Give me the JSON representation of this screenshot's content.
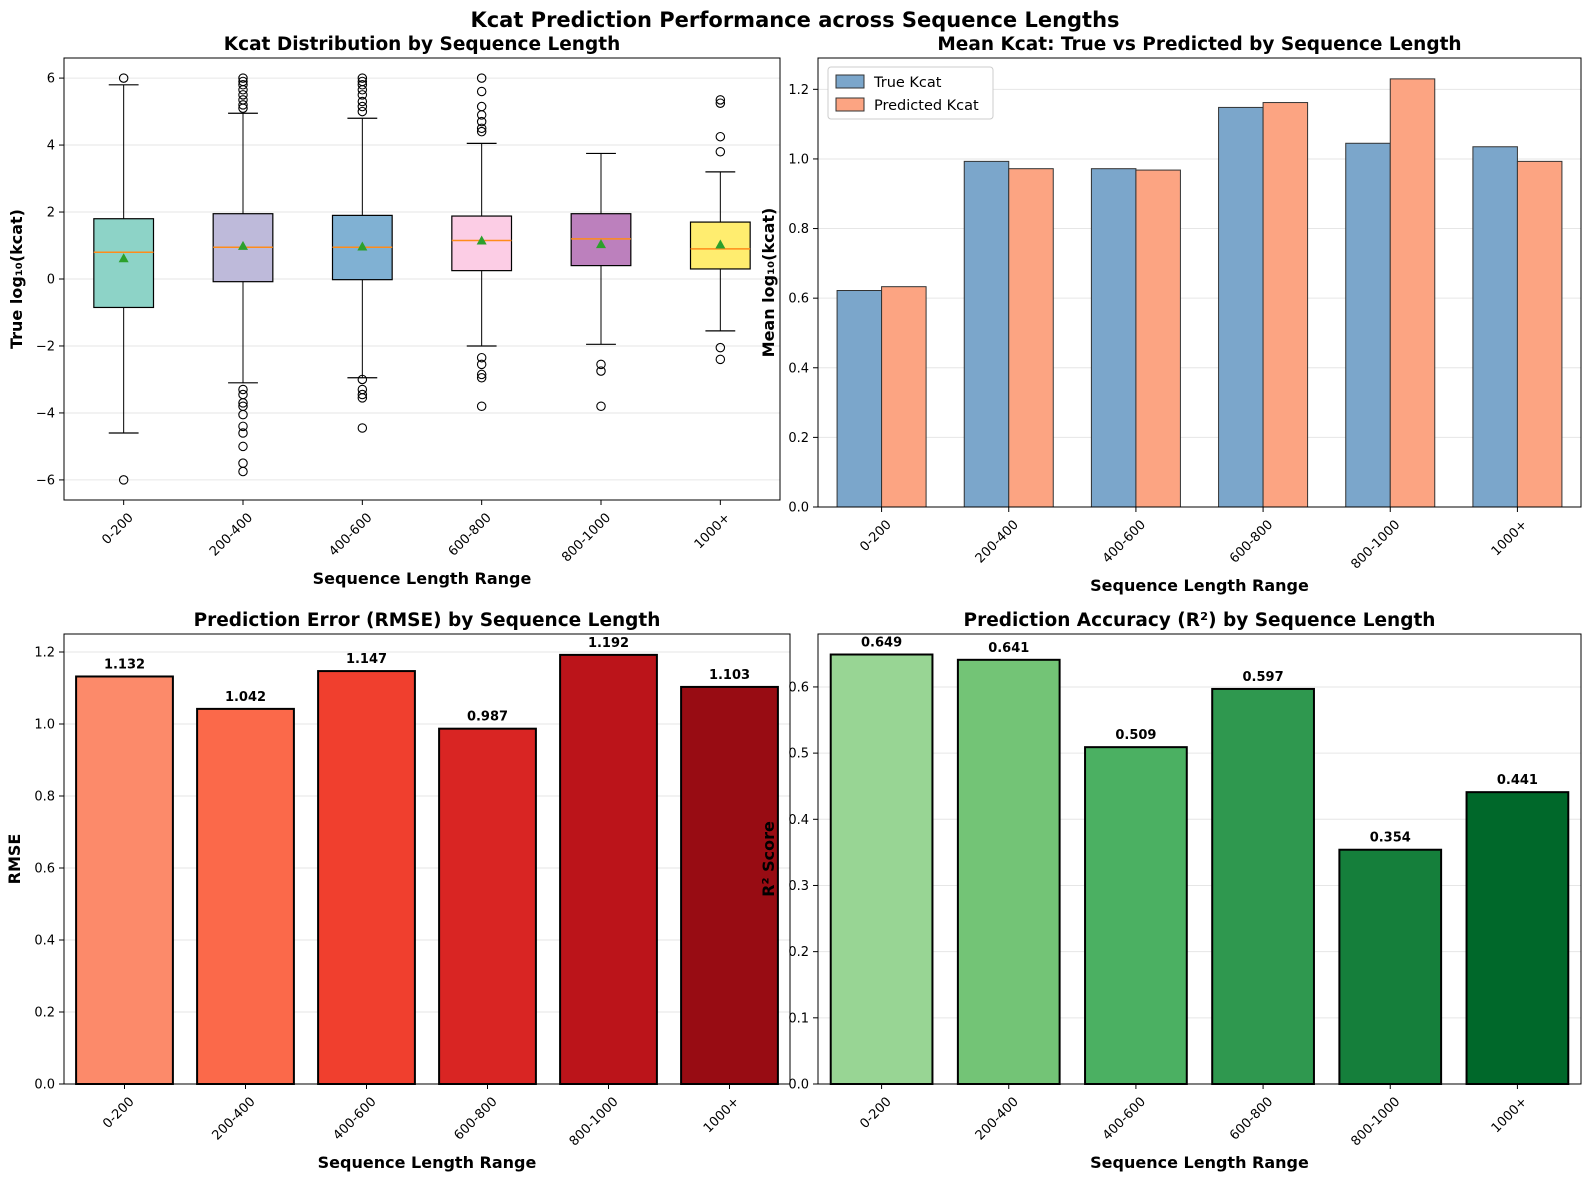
{
  "suptitle": "Kcat Prediction Performance across Sequence Lengths",
  "chart_data": [
    {
      "type": "box",
      "title": "Kcat Distribution by Sequence Length",
      "xlabel": "Sequence Length Range",
      "ylabel": "True log₁₀(kcat)",
      "ylim": [
        -6.6,
        6.6
      ],
      "yticks": [
        -6,
        -4,
        -2,
        0,
        2,
        4,
        6
      ],
      "categories": [
        "0-200",
        "200-400",
        "400-600",
        "600-800",
        "800-1000",
        "1000+"
      ],
      "colors": [
        "#8dd3c7",
        "#bebada",
        "#80b1d3",
        "#fccde5",
        "#bc80bd",
        "#ffed6f"
      ],
      "boxes": [
        {
          "whislo": -4.6,
          "q1": -0.85,
          "med": 0.8,
          "q3": 1.8,
          "whishi": 5.8,
          "mean": 0.62,
          "fliers": [
            6.0,
            -6.0
          ]
        },
        {
          "whislo": -3.1,
          "q1": -0.08,
          "med": 0.95,
          "q3": 1.95,
          "whishi": 4.95,
          "mean": 0.99,
          "fliers": [
            6.0,
            5.9,
            5.8,
            5.65,
            5.5,
            5.35,
            5.2,
            5.1,
            -3.3,
            -3.45,
            -3.7,
            -3.8,
            -4.05,
            -4.4,
            -4.6,
            -5.0,
            -5.5,
            -5.75
          ]
        },
        {
          "whislo": -2.95,
          "q1": -0.02,
          "med": 0.95,
          "q3": 1.9,
          "whishi": 4.8,
          "mean": 0.97,
          "fliers": [
            6.0,
            5.9,
            5.8,
            5.65,
            5.5,
            5.3,
            5.15,
            5.0,
            -3.0,
            -3.3,
            -3.45,
            -3.55,
            -4.45
          ]
        },
        {
          "whislo": -2.0,
          "q1": 0.25,
          "med": 1.15,
          "q3": 1.88,
          "whishi": 4.05,
          "mean": 1.15,
          "fliers": [
            6.0,
            5.6,
            5.15,
            4.9,
            4.7,
            4.5,
            4.4,
            -2.35,
            -2.55,
            -2.85,
            -2.95,
            -3.8
          ]
        },
        {
          "whislo": -1.95,
          "q1": 0.4,
          "med": 1.2,
          "q3": 1.95,
          "whishi": 3.75,
          "mean": 1.04,
          "fliers": [
            -2.55,
            -2.75,
            -3.8
          ]
        },
        {
          "whislo": -1.55,
          "q1": 0.3,
          "med": 0.9,
          "q3": 1.7,
          "whishi": 3.2,
          "mean": 1.03,
          "fliers": [
            5.35,
            5.25,
            4.25,
            3.8,
            -2.05,
            -2.4
          ]
        }
      ]
    },
    {
      "type": "bar",
      "title": "Mean Kcat: True vs Predicted by Sequence Length",
      "xlabel": "Sequence Length Range",
      "ylabel": "Mean log₁₀(kcat)",
      "ylim": [
        0,
        1.29
      ],
      "yticks": [
        0.0,
        0.2,
        0.4,
        0.6,
        0.8,
        1.0,
        1.2
      ],
      "categories": [
        "0-200",
        "200-400",
        "400-600",
        "600-800",
        "800-1000",
        "1000+"
      ],
      "legend_position": "upper-left",
      "series": [
        {
          "name": "True Kcat",
          "color": "#7ba6cb",
          "values": [
            0.622,
            0.993,
            0.972,
            1.148,
            1.045,
            1.035
          ]
        },
        {
          "name": "Predicted Kcat",
          "color": "#fca482",
          "values": [
            0.633,
            0.972,
            0.968,
            1.162,
            1.23,
            0.993
          ]
        }
      ]
    },
    {
      "type": "bar",
      "title": "Prediction Error (RMSE) by Sequence Length",
      "xlabel": "Sequence Length Range",
      "ylabel": "RMSE",
      "ylim": [
        0,
        1.25
      ],
      "yticks": [
        0.0,
        0.2,
        0.4,
        0.6,
        0.8,
        1.0,
        1.2
      ],
      "categories": [
        "0-200",
        "200-400",
        "400-600",
        "600-800",
        "800-1000",
        "1000+"
      ],
      "values": [
        1.132,
        1.042,
        1.147,
        0.987,
        1.192,
        1.103
      ],
      "labels": [
        "1.132",
        "1.042",
        "1.147",
        "0.987",
        "1.192",
        "1.103"
      ],
      "colors": [
        "#fc8a6a",
        "#fb694a",
        "#f03f2e",
        "#d92523",
        "#bb141a",
        "#980c13"
      ]
    },
    {
      "type": "bar",
      "title": "Prediction Accuracy (R²) by Sequence Length",
      "xlabel": "Sequence Length Range",
      "ylabel": "R² Score",
      "ylim": [
        0,
        0.68
      ],
      "yticks": [
        0.0,
        0.1,
        0.2,
        0.3,
        0.4,
        0.5,
        0.6
      ],
      "categories": [
        "0-200",
        "200-400",
        "400-600",
        "600-800",
        "800-1000",
        "1000+"
      ],
      "values": [
        0.649,
        0.641,
        0.509,
        0.597,
        0.354,
        0.441
      ],
      "labels": [
        "0.649",
        "0.641",
        "0.509",
        "0.597",
        "0.354",
        "0.441"
      ],
      "colors": [
        "#98d594",
        "#73c476",
        "#4bb062",
        "#2f984f",
        "#157f3b",
        "#00682a"
      ]
    }
  ]
}
